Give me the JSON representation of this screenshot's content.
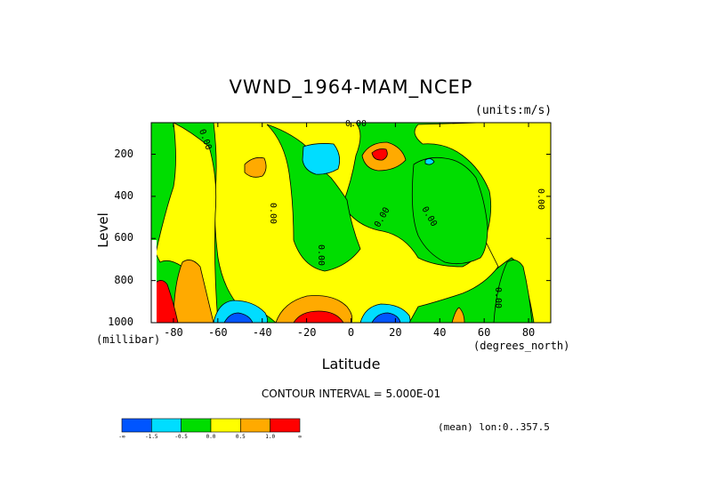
{
  "chart_data": {
    "type": "heatmap",
    "title": "VWND_1964-MAM_NCEP",
    "units_label": "(units:m/s)",
    "ylabel": "Level",
    "ylabel_units": "(millibar)",
    "xlabel": "Latitude",
    "xlabel_units": "(degrees_north)",
    "xlim": [
      -90,
      90
    ],
    "ylim": [
      1000,
      50
    ],
    "x_ticks": [
      "-80",
      "-60",
      "-40",
      "-20",
      "0",
      "20",
      "40",
      "60",
      "80"
    ],
    "x_tick_values": [
      -80,
      -60,
      -40,
      -20,
      0,
      20,
      40,
      60,
      80
    ],
    "y_ticks": [
      "200",
      "400",
      "600",
      "800",
      "1000"
    ],
    "y_tick_values": [
      200,
      400,
      600,
      800,
      1000
    ],
    "contour_interval": "CONTOUR INTERVAL = 5.000E-01",
    "mean_label": "(mean) lon:0..357.5",
    "contour_labels": [
      "0.00",
      "0.00",
      "0.00",
      "0.00",
      "0.00",
      "0.00",
      "0.00",
      "0.00",
      "0.00",
      "0.00"
    ],
    "colorbar": {
      "colors": [
        "#0055ff",
        "#00ddff",
        "#00dd00",
        "#ffff00",
        "#ffaa00",
        "#ff0000"
      ],
      "labels": [
        "-∞",
        "-1.5",
        "-0.5",
        "0.0",
        "0.5",
        "1.0",
        "∞"
      ]
    },
    "regions": [
      {
        "level": "positive",
        "lat": [
          -22,
          20
        ],
        "p": [
          150,
          600
        ]
      },
      {
        "level": "positive",
        "lat": [
          40,
          90
        ],
        "p": [
          150,
          1000
        ]
      },
      {
        "level": "weak-negative",
        "lat": [
          -90,
          -40
        ],
        "p": [
          100,
          1000
        ]
      },
      {
        "level": "weak-negative",
        "lat": [
          0,
          55
        ],
        "p": [
          100,
          400
        ]
      },
      {
        "level": "moderate-negative",
        "lat": [
          -18,
          -5
        ],
        "p": [
          150,
          280
        ]
      },
      {
        "level": "strong-positive",
        "lat": [
          -25,
          -5
        ],
        "p": [
          880,
          1000
        ]
      },
      {
        "level": "strong-negative",
        "lat": [
          8,
          22
        ],
        "p": [
          920,
          1000
        ]
      },
      {
        "level": "strong-negative",
        "lat": [
          -55,
          -45
        ],
        "p": [
          940,
          1000
        ]
      }
    ]
  }
}
